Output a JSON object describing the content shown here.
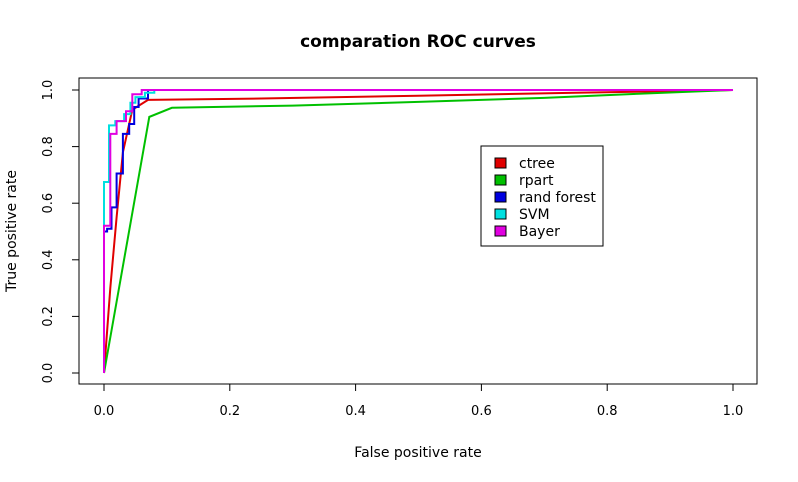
{
  "chart_data": {
    "type": "line",
    "title": "comparation ROC curves",
    "xlabel": "False positive rate",
    "ylabel": "True positive rate",
    "xlim": [
      0,
      1
    ],
    "ylim": [
      0,
      1
    ],
    "xticks": [
      "0.0",
      "0.2",
      "0.4",
      "0.6",
      "0.8",
      "1.0"
    ],
    "yticks": [
      "0.0",
      "0.2",
      "0.4",
      "0.6",
      "0.8",
      "1.0"
    ],
    "grid": false,
    "legend_position": "center-right",
    "series": [
      {
        "name": "ctree",
        "color": "#e00000",
        "x": [
          0,
          0.01,
          0.02,
          0.03,
          0.045,
          0.07,
          0.25,
          0.5,
          0.75,
          1.0
        ],
        "y": [
          0,
          0.3,
          0.55,
          0.78,
          0.93,
          0.965,
          0.97,
          0.98,
          0.99,
          1.0
        ]
      },
      {
        "name": "rpart",
        "color": "#00c000",
        "x": [
          0,
          0.072,
          0.108,
          0.3,
          0.5,
          0.7,
          0.85,
          1.0
        ],
        "y": [
          0,
          0.905,
          0.937,
          0.945,
          0.958,
          0.972,
          0.987,
          1.0
        ]
      },
      {
        "name": "rand forest",
        "color": "#0000e0",
        "x": [
          0,
          0.0,
          0.005,
          0.005,
          0.012,
          0.012,
          0.02,
          0.02,
          0.03,
          0.03,
          0.04,
          0.04,
          0.048,
          0.048,
          0.055,
          0.055,
          0.07,
          0.07,
          1.0
        ],
        "y": [
          0,
          0.5,
          0.5,
          0.51,
          0.51,
          0.585,
          0.585,
          0.705,
          0.705,
          0.845,
          0.845,
          0.88,
          0.88,
          0.94,
          0.94,
          0.97,
          0.97,
          1.0,
          1.0
        ]
      },
      {
        "name": "SVM",
        "color": "#00e0e0",
        "x": [
          0,
          0.0,
          0.008,
          0.008,
          0.018,
          0.018,
          0.032,
          0.032,
          0.042,
          0.042,
          0.05,
          0.05,
          0.065,
          0.065,
          0.08,
          0.08,
          1.0
        ],
        "y": [
          0,
          0.675,
          0.675,
          0.875,
          0.875,
          0.89,
          0.89,
          0.915,
          0.915,
          0.955,
          0.955,
          0.975,
          0.975,
          0.99,
          0.99,
          1.0,
          1.0
        ]
      },
      {
        "name": "Bayer",
        "color": "#e000e0",
        "x": [
          0,
          0.0,
          0.01,
          0.01,
          0.02,
          0.02,
          0.035,
          0.035,
          0.045,
          0.045,
          0.06,
          0.06,
          1.0
        ],
        "y": [
          0,
          0.52,
          0.52,
          0.845,
          0.845,
          0.89,
          0.89,
          0.925,
          0.925,
          0.985,
          0.985,
          1.0,
          1.0
        ]
      }
    ]
  }
}
